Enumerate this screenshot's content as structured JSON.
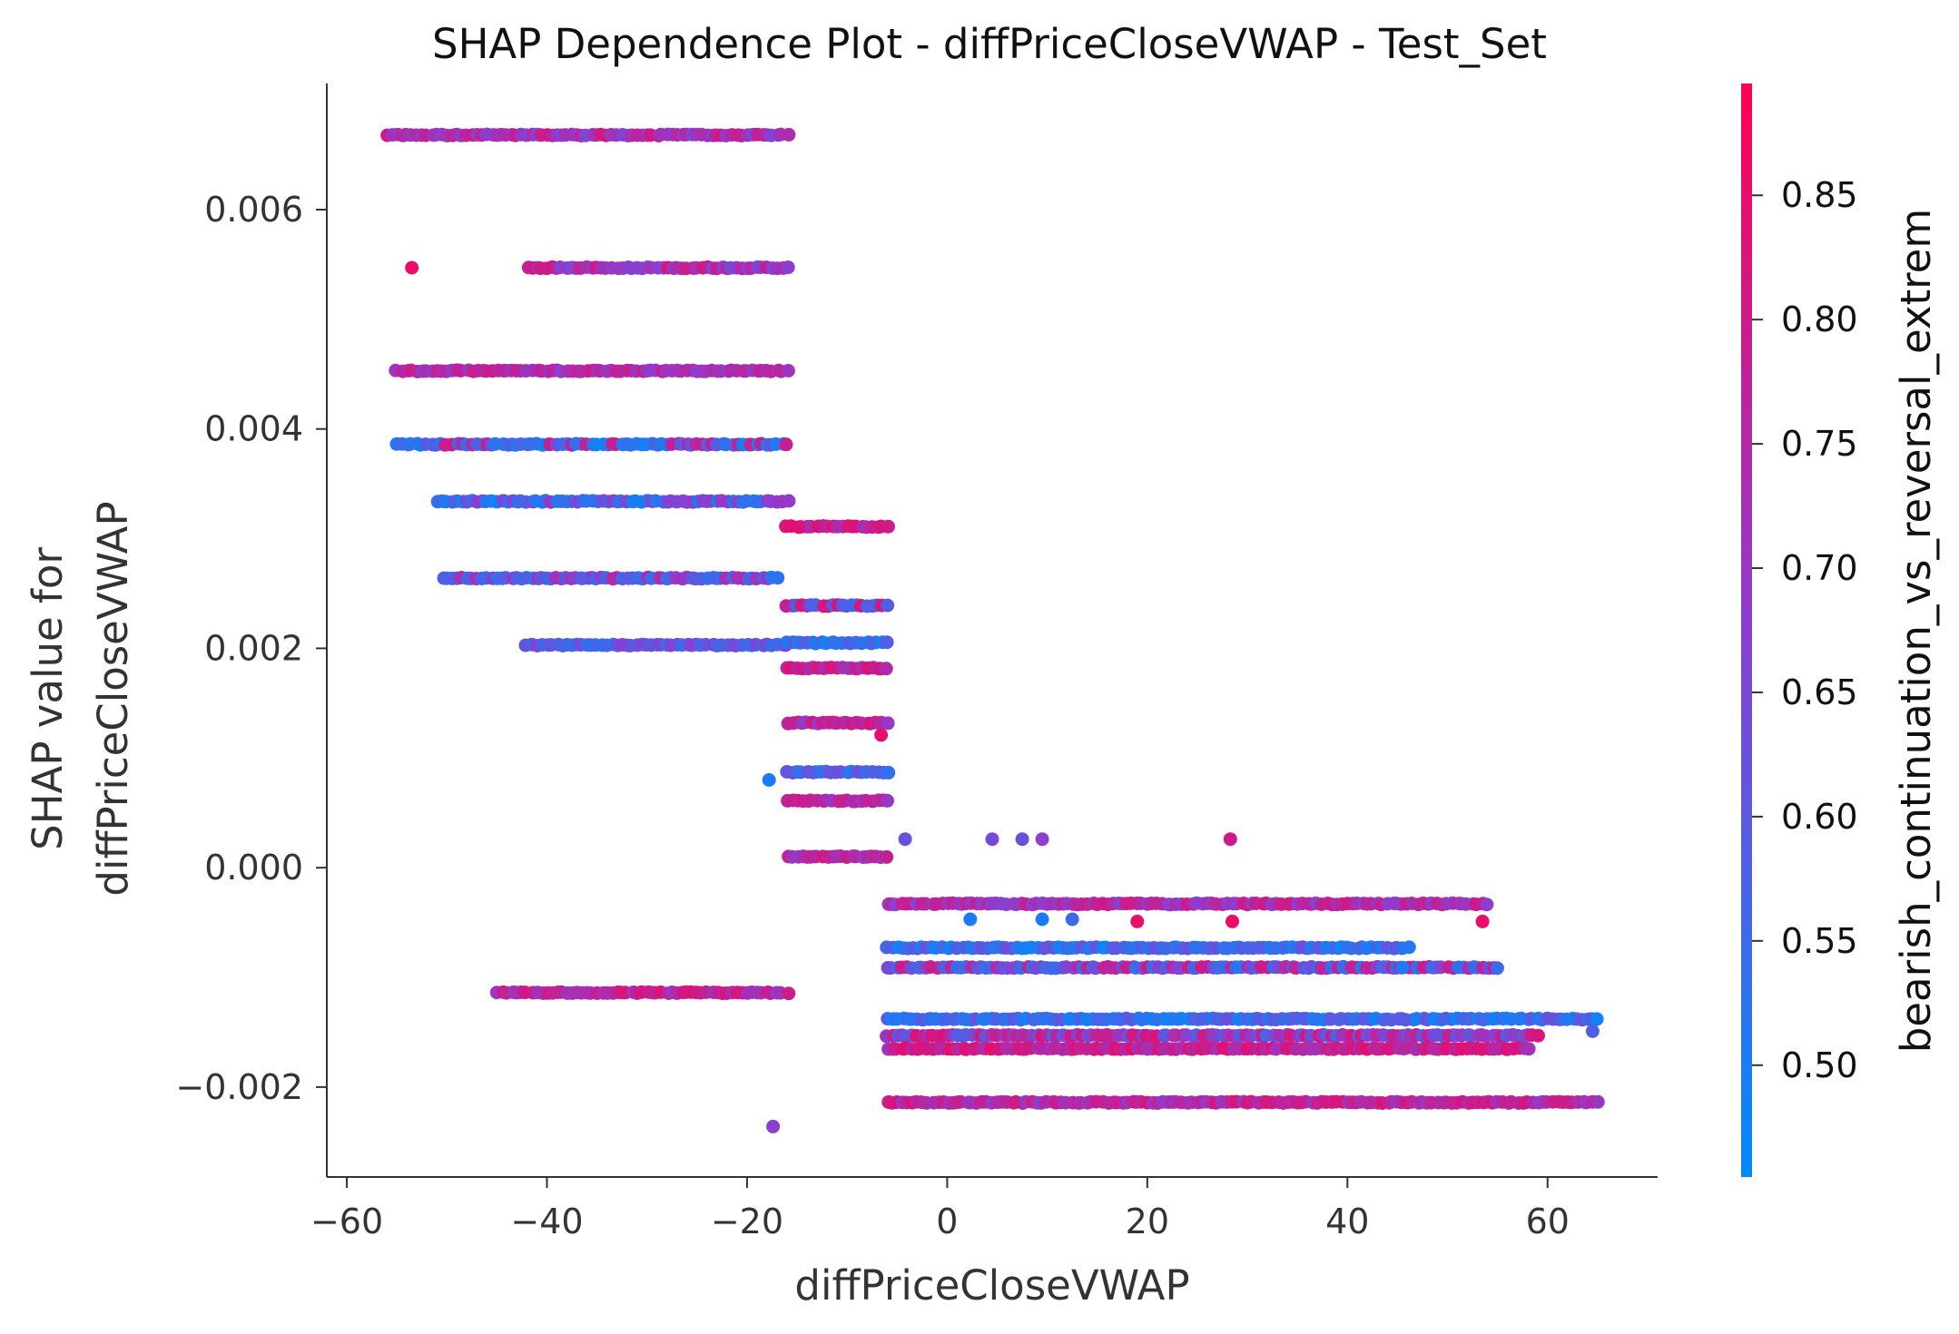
{
  "chart_data": {
    "type": "scatter",
    "title": "SHAP Dependence Plot - diffPriceCloseVWAP - Test_Set",
    "xlabel": "diffPriceCloseVWAP",
    "ylabel_lines": [
      "SHAP value for",
      "diffPriceCloseVWAP"
    ],
    "colorbar_label": "bearish_continuation_vs_reversal_extrem",
    "xlim": [
      -62,
      71
    ],
    "ylim": [
      -0.00282,
      0.00715
    ],
    "x_ticks": [
      -60,
      -40,
      -20,
      0,
      20,
      40,
      60
    ],
    "x_tick_labels": [
      "−60",
      "−40",
      "−20",
      "0",
      "20",
      "40",
      "60"
    ],
    "y_ticks": [
      -0.002,
      0.0,
      0.002,
      0.004,
      0.006
    ],
    "y_tick_labels": [
      "−0.002",
      "0.000",
      "0.002",
      "0.004",
      "0.006"
    ],
    "color_range": [
      0.455,
      0.895
    ],
    "color_ticks": [
      0.5,
      0.55,
      0.6,
      0.65,
      0.7,
      0.75,
      0.8,
      0.85
    ],
    "color_tick_labels": [
      "0.50",
      "0.55",
      "0.60",
      "0.65",
      "0.70",
      "0.75",
      "0.80",
      "0.85"
    ],
    "colormap": [
      "#008bfb",
      "#ff0051"
    ],
    "grid": false,
    "clusters": [
      {
        "y": 0.00668,
        "x_range": [
          -56,
          -16
        ],
        "colors": [
          0.68,
          0.78,
          0.72
        ]
      },
      {
        "y": 0.00547,
        "x_range": [
          -42,
          -16
        ],
        "colors": [
          0.72,
          0.66,
          0.8
        ]
      },
      {
        "y": 0.00453,
        "x_range": [
          -55,
          -16
        ],
        "colors": [
          0.7,
          0.78,
          0.74
        ]
      },
      {
        "y": 0.00386,
        "x_range": [
          -55,
          -16
        ],
        "colors": [
          0.5,
          0.6,
          0.55,
          0.78
        ]
      },
      {
        "y": 0.00334,
        "x_range": [
          -51,
          -16
        ],
        "colors": [
          0.55,
          0.5,
          0.68
        ]
      },
      {
        "y": 0.00264,
        "x_range": [
          -50,
          -17
        ],
        "colors": [
          0.58,
          0.55,
          0.72
        ]
      },
      {
        "y": 0.00203,
        "x_range": [
          -42,
          -16
        ],
        "colors": [
          0.55,
          0.6,
          0.65
        ]
      },
      {
        "y": 0.00311,
        "x_range": [
          -16,
          -6
        ],
        "colors": [
          0.82,
          0.75
        ]
      },
      {
        "y": 0.00239,
        "x_range": [
          -16,
          -6
        ],
        "colors": [
          0.58,
          0.8
        ]
      },
      {
        "y": 0.00205,
        "x_range": [
          -16,
          -6
        ],
        "colors": [
          0.5,
          0.56
        ]
      },
      {
        "y": 0.00182,
        "x_range": [
          -16,
          -6
        ],
        "colors": [
          0.74,
          0.82
        ]
      },
      {
        "y": 0.00132,
        "x_range": [
          -16,
          -6
        ],
        "colors": [
          0.72,
          0.8
        ]
      },
      {
        "y": 0.00087,
        "x_range": [
          -16,
          -6
        ],
        "colors": [
          0.55,
          0.6
        ]
      },
      {
        "y": 0.00061,
        "x_range": [
          -16,
          -6
        ],
        "colors": [
          0.72,
          0.78
        ]
      },
      {
        "y": 0.0001,
        "x_range": [
          -16,
          -6
        ],
        "colors": [
          0.78,
          0.72
        ]
      },
      {
        "y": -0.00114,
        "x_range": [
          -45,
          -16
        ],
        "colors": [
          0.72,
          0.8
        ]
      },
      {
        "y": -0.00033,
        "x_range": [
          -6,
          54
        ],
        "colors": [
          0.78,
          0.7
        ]
      },
      {
        "y": -0.00073,
        "x_range": [
          -6,
          46
        ],
        "colors": [
          0.5,
          0.55,
          0.6
        ]
      },
      {
        "y": -0.00091,
        "x_range": [
          -6,
          55
        ],
        "colors": [
          0.55,
          0.65,
          0.78
        ]
      },
      {
        "y": -0.00138,
        "x_range": [
          -6,
          65
        ],
        "colors": [
          0.5,
          0.55,
          0.6
        ]
      },
      {
        "y": -0.00153,
        "x_range": [
          -6,
          59
        ],
        "colors": [
          0.7,
          0.8,
          0.6
        ]
      },
      {
        "y": -0.00165,
        "x_range": [
          -6,
          58
        ],
        "colors": [
          0.75,
          0.82
        ]
      },
      {
        "y": -0.00214,
        "x_range": [
          -6,
          65
        ],
        "colors": [
          0.72,
          0.8,
          0.78
        ]
      }
    ],
    "outliers": [
      {
        "x": -53.5,
        "y": 0.00547,
        "c": 0.85
      },
      {
        "x": -50.3,
        "y": 0.00264,
        "c": 0.58
      },
      {
        "x": -36.6,
        "y": 0.00264,
        "c": 0.6
      },
      {
        "x": 4.5,
        "y": 0.00026,
        "c": 0.65
      },
      {
        "x": 7.5,
        "y": 0.00026,
        "c": 0.62
      },
      {
        "x": 9.5,
        "y": 0.00026,
        "c": 0.68
      },
      {
        "x": -4.2,
        "y": 0.00026,
        "c": 0.62
      },
      {
        "x": 28.3,
        "y": 0.00026,
        "c": 0.8
      },
      {
        "x": -17.4,
        "y": -0.00236,
        "c": 0.68
      },
      {
        "x": -17.8,
        "y": 0.0008,
        "c": 0.5
      },
      {
        "x": -6.6,
        "y": 0.00121,
        "c": 0.85
      },
      {
        "x": 2.3,
        "y": -0.00047,
        "c": 0.5
      },
      {
        "x": 9.5,
        "y": -0.00047,
        "c": 0.5
      },
      {
        "x": 19,
        "y": -0.00049,
        "c": 0.85
      },
      {
        "x": 28.5,
        "y": -0.00049,
        "c": 0.85
      },
      {
        "x": 53.5,
        "y": -0.00049,
        "c": 0.85
      },
      {
        "x": 12.5,
        "y": -0.00047,
        "c": 0.55
      },
      {
        "x": 45.5,
        "y": -0.00091,
        "c": 0.5
      },
      {
        "x": 64.5,
        "y": -0.00149,
        "c": 0.58
      }
    ]
  }
}
